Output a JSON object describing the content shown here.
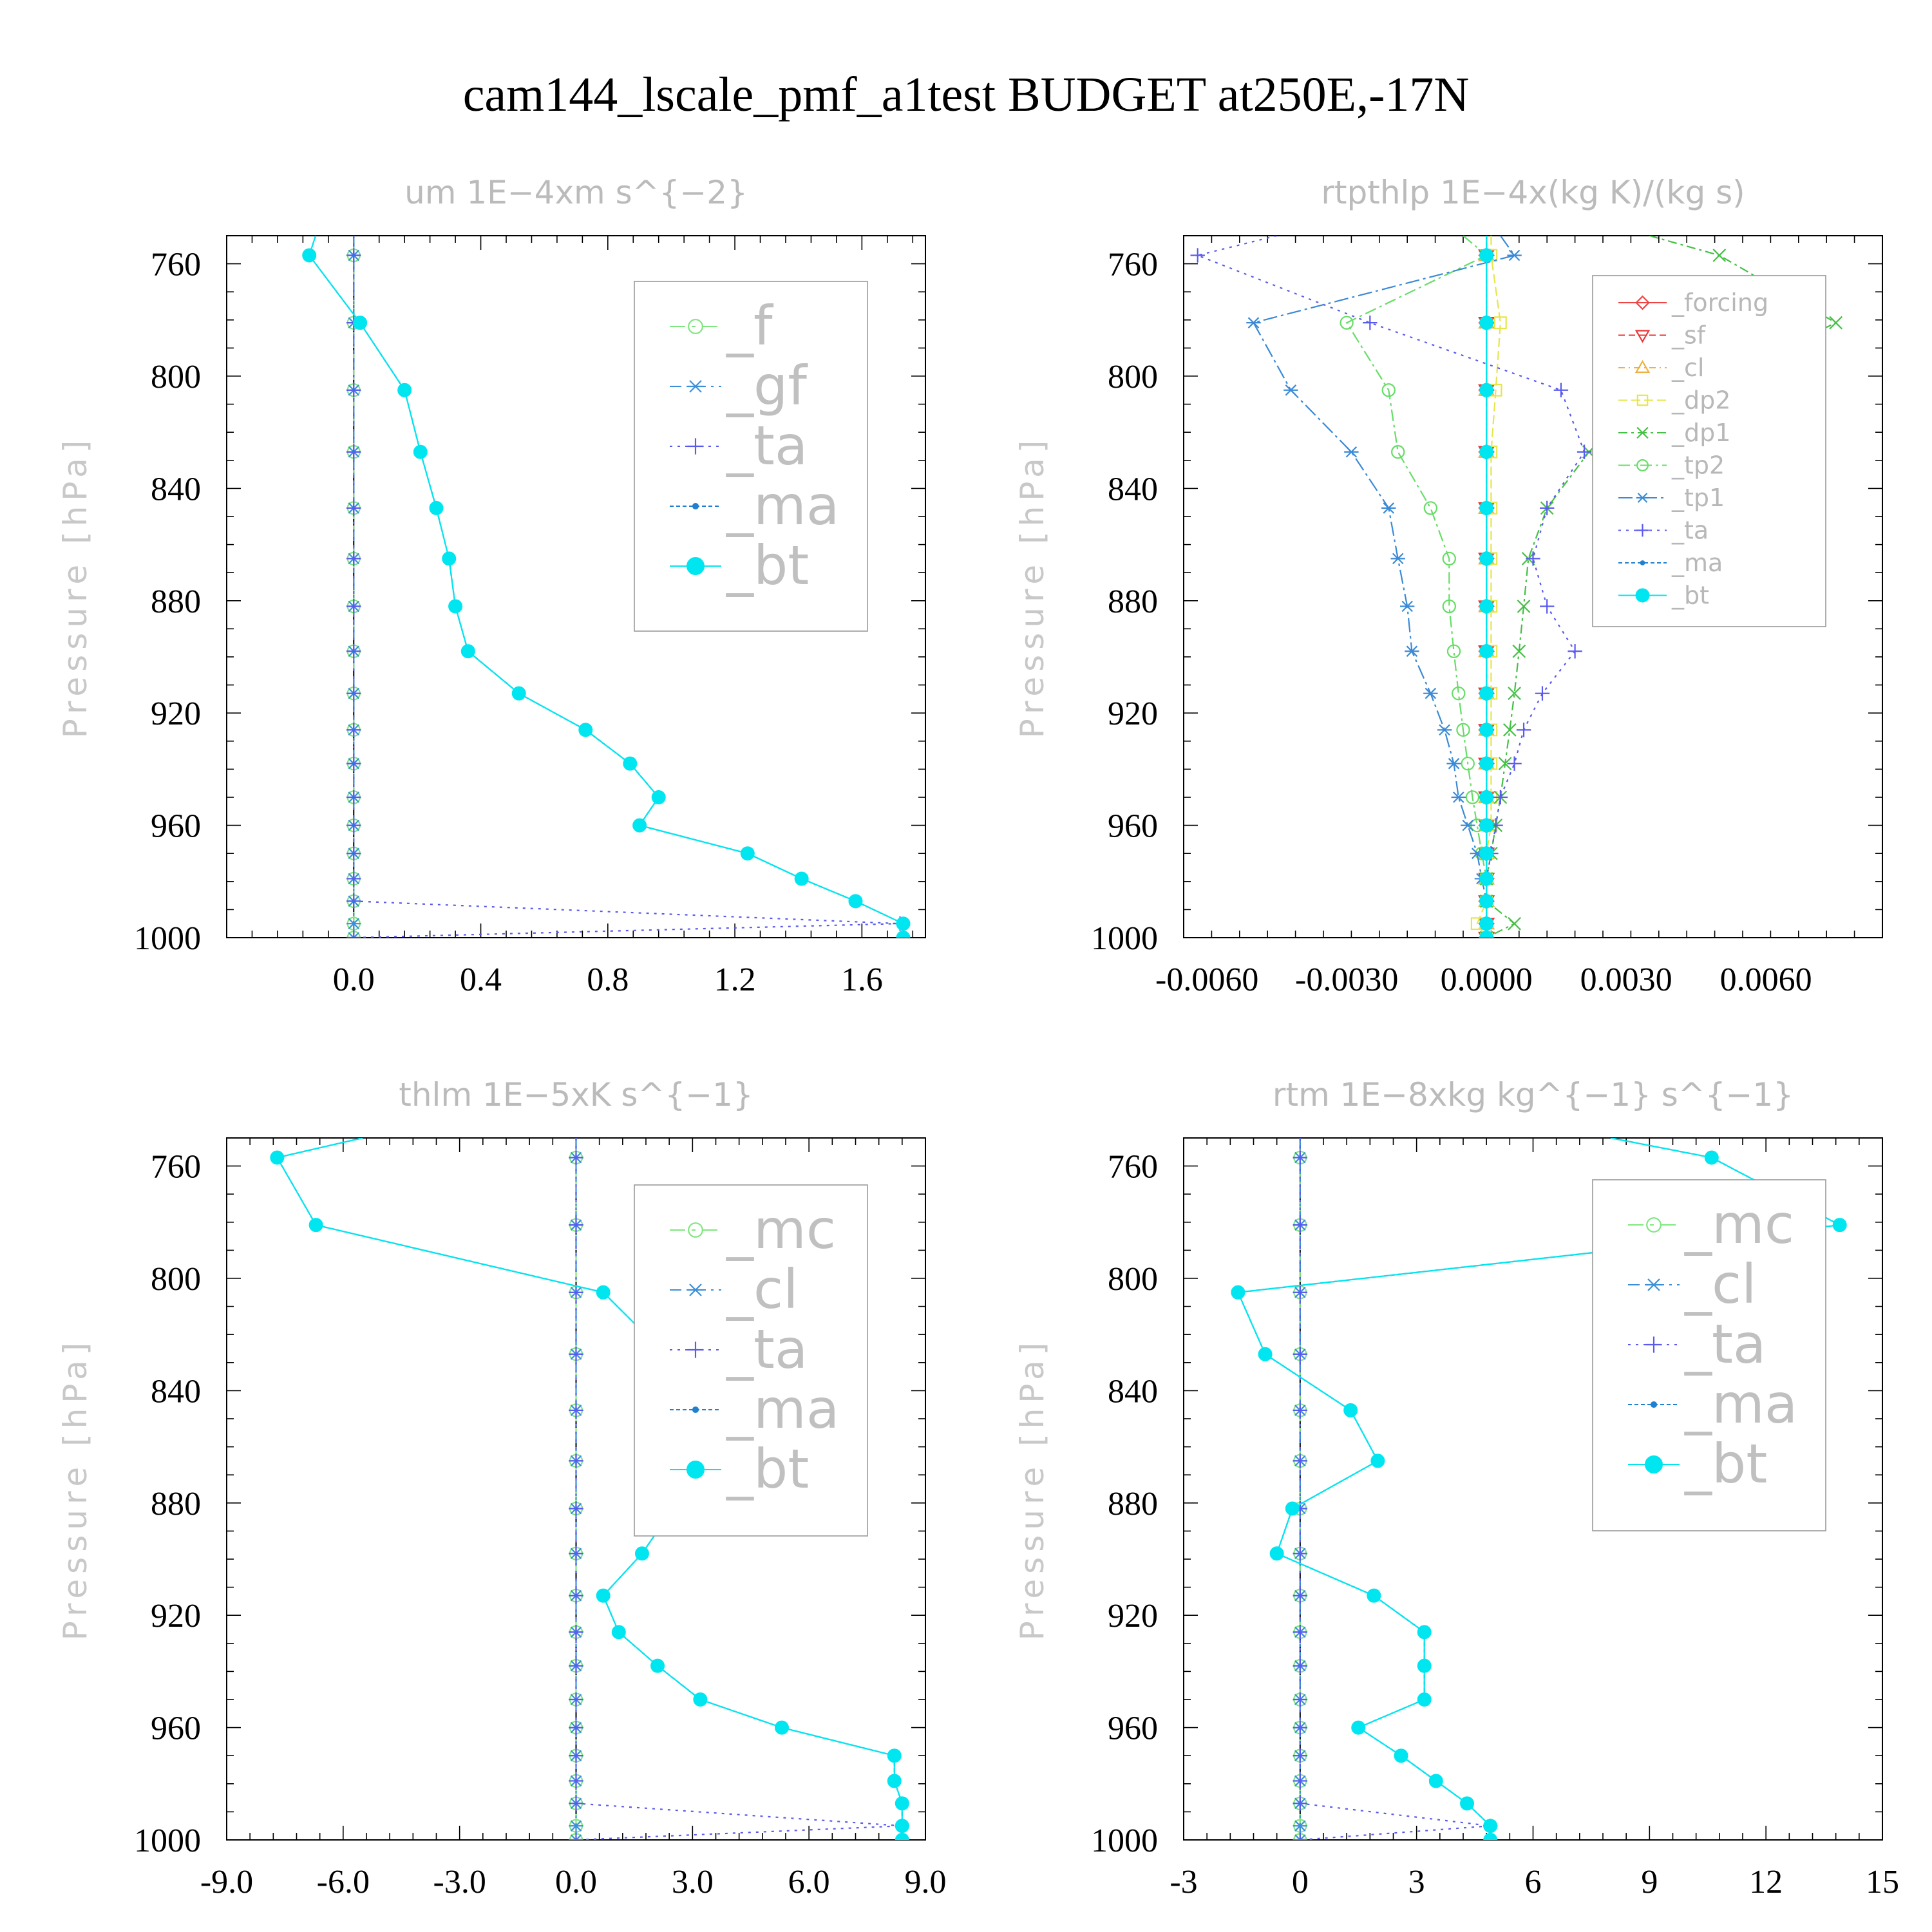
{
  "title": "cam144_lscale_pmf_a1test  BUDGET at250E,-17N",
  "chart_data": [
    {
      "type": "line",
      "title": "um   1E−4xm s^{−2}",
      "ylabel": "Pressure [hPa]",
      "xlim": [
        -0.4,
        1.8
      ],
      "ylim": [
        1000,
        750
      ],
      "xticks": [
        0.0,
        0.4,
        0.8,
        1.2,
        1.6
      ],
      "xtick_labels": [
        "0.0",
        "0.4",
        "0.8",
        "1.2",
        "1.6"
      ],
      "yticks": [
        760,
        800,
        840,
        880,
        920,
        960,
        1000
      ],
      "ytick_labels": [
        "760",
        "800",
        "840",
        "880",
        "920",
        "960",
        "1000"
      ],
      "zero_line": true,
      "legend_style": "big",
      "pressure": [
        750,
        757,
        781,
        805,
        827,
        847,
        865,
        882,
        898,
        913,
        926,
        938,
        950,
        960,
        970,
        979,
        987,
        995,
        1000
      ],
      "series": [
        {
          "name": "_f",
          "color": "#7fe67f",
          "marker": "circle",
          "dash": "24 10 6 10",
          "values": [
            0,
            0,
            0,
            0,
            0,
            0,
            0,
            0,
            0,
            0,
            0,
            0,
            0,
            0,
            0,
            0,
            0,
            0,
            0
          ]
        },
        {
          "name": "_gf",
          "color": "#3a8fd8",
          "marker": "star",
          "dash": "18 8 4 8",
          "values": [
            0,
            0,
            0,
            0,
            0,
            0,
            0,
            0,
            0,
            0,
            0,
            0,
            0,
            0,
            0,
            0,
            0,
            0,
            0
          ]
        },
        {
          "name": "_ta",
          "color": "#5a5aee",
          "marker": "plus",
          "dash": "4 8",
          "values": [
            0,
            0,
            0,
            0,
            0,
            0,
            0,
            0,
            0,
            0,
            0,
            0,
            0,
            0,
            0,
            0,
            0,
            1.72,
            0
          ]
        },
        {
          "name": "_ma",
          "color": "#1f7fd0",
          "marker": "dot",
          "dash": "6 4",
          "values": [
            -0.12,
            -0.14,
            0.02,
            0.16,
            0.21,
            0.26,
            0.3,
            0.32,
            0.36,
            0.52,
            0.73,
            0.87,
            0.96,
            0.9,
            1.24,
            1.41,
            1.58,
            1.73,
            1.73
          ]
        },
        {
          "name": "_bt",
          "color": "#00e6f0",
          "marker": "filled",
          "dash": "",
          "values": [
            -0.12,
            -0.14,
            0.02,
            0.16,
            0.21,
            0.26,
            0.3,
            0.32,
            0.36,
            0.52,
            0.73,
            0.87,
            0.96,
            0.9,
            1.24,
            1.41,
            1.58,
            1.73,
            1.73
          ]
        }
      ]
    },
    {
      "type": "line",
      "title": "rtpthlp   1E−4x(kg K)/(kg s)",
      "ylabel": "Pressure [hPa]",
      "xlim": [
        -0.0065,
        0.0085
      ],
      "ylim": [
        1000,
        750
      ],
      "xticks": [
        -0.006,
        -0.003,
        0.0,
        0.003,
        0.006
      ],
      "xtick_labels": [
        "-0.0060",
        "-0.0030",
        "0.0000",
        "0.0030",
        "0.0060"
      ],
      "yticks": [
        760,
        800,
        840,
        880,
        920,
        960,
        1000
      ],
      "ytick_labels": [
        "760",
        "800",
        "840",
        "880",
        "920",
        "960",
        "1000"
      ],
      "zero_line": true,
      "legend_style": "small",
      "pressure": [
        750,
        757,
        781,
        805,
        827,
        847,
        865,
        882,
        898,
        913,
        926,
        938,
        950,
        960,
        970,
        979,
        987,
        995,
        1000
      ],
      "series": [
        {
          "name": "_forcing",
          "color": "#ee4444",
          "marker": "diamond",
          "dash": "",
          "values": [
            0,
            0,
            0,
            0,
            0,
            0,
            0,
            0,
            0,
            0,
            0,
            0,
            0,
            0,
            0,
            0,
            0,
            0,
            0
          ]
        },
        {
          "name": "_sf",
          "color": "#ee3333",
          "marker": "tri-down",
          "dash": "10 6",
          "values": [
            0,
            0,
            0,
            0,
            0,
            0,
            0,
            0,
            0,
            0,
            0,
            0,
            0,
            0,
            0,
            0,
            0,
            0,
            0
          ]
        },
        {
          "name": "_cl",
          "color": "#f0b040",
          "marker": "tri-up",
          "dash": "10 6 2 6",
          "values": [
            0,
            0,
            0,
            0,
            0,
            0,
            0,
            0,
            0,
            0,
            0,
            0,
            0,
            0,
            0,
            0,
            0,
            0,
            0
          ]
        },
        {
          "name": "_dp2",
          "color": "#e6e64a",
          "marker": "square",
          "dash": "14 6",
          "values": [
            0.0001,
            0.0001,
            0.0003,
            0.0002,
            0.0001,
            0.0001,
            0.0001,
            0.0001,
            0.0001,
            0.0001,
            0.0001,
            0.0001,
            0.0001,
            0.0001,
            0.0,
            0.0,
            0.0,
            -0.0002,
            0.0
          ]
        },
        {
          "name": "_dp1",
          "color": "#44c044",
          "marker": "x",
          "dash": "14 6 4 6",
          "values": [
            0.0035,
            0.005,
            0.0075,
            0.0045,
            0.0022,
            0.0013,
            0.0009,
            0.0008,
            0.0007,
            0.0006,
            0.0005,
            0.0004,
            0.0003,
            0.0002,
            0.0001,
            0.0,
            0.0,
            0.0006,
            0.0
          ]
        },
        {
          "name": "_tp2",
          "color": "#66dd66",
          "marker": "circle",
          "dash": "18 6 4 6",
          "values": [
            -0.0005,
            0.0,
            -0.003,
            -0.0021,
            -0.0019,
            -0.0012,
            -0.0008,
            -0.0008,
            -0.0007,
            -0.0006,
            -0.0005,
            -0.0004,
            -0.0003,
            -0.0002,
            -0.0001,
            0.0,
            0.0,
            0.0,
            0.0
          ]
        },
        {
          "name": "_tp1",
          "color": "#3a8ad6",
          "marker": "star",
          "dash": "22 6 4 6",
          "values": [
            0.0003,
            0.0006,
            -0.005,
            -0.0042,
            -0.0029,
            -0.0021,
            -0.0019,
            -0.0017,
            -0.0016,
            -0.0012,
            -0.0009,
            -0.0007,
            -0.0006,
            -0.0004,
            -0.0002,
            -0.0001,
            0.0,
            0.0,
            0.0
          ]
        },
        {
          "name": "_ta",
          "color": "#5a5aee",
          "marker": "plus",
          "dash": "4 8",
          "values": [
            -0.0045,
            -0.0062,
            -0.0025,
            0.0016,
            0.0021,
            0.0013,
            0.001,
            0.0013,
            0.0019,
            0.0012,
            0.0008,
            0.0006,
            0.0003,
            0.0002,
            0.0001,
            0.0,
            0.0,
            0.0,
            0.0
          ]
        },
        {
          "name": "_ma",
          "color": "#1f7fd0",
          "marker": "dot",
          "dash": "6 4",
          "values": [
            0,
            0,
            0,
            0,
            0,
            0,
            0,
            0,
            0,
            0,
            0,
            0,
            0,
            0,
            0,
            0,
            0,
            0,
            0
          ]
        },
        {
          "name": "_bt",
          "color": "#00e6f0",
          "marker": "filled",
          "dash": "",
          "values": [
            0,
            0,
            0,
            0,
            0,
            0,
            0,
            0,
            0,
            0,
            0,
            0,
            0,
            0,
            0,
            0,
            0,
            0,
            0
          ]
        }
      ]
    },
    {
      "type": "line",
      "title": "thlm   1E−5xK s^{−1}",
      "ylabel": "Pressure [hPa]",
      "xlim": [
        -9.0,
        9.0
      ],
      "ylim": [
        1000,
        750
      ],
      "xticks": [
        -9.0,
        -6.0,
        -3.0,
        0.0,
        3.0,
        6.0,
        9.0
      ],
      "xtick_labels": [
        "-9.0",
        "-6.0",
        "-3.0",
        "0.0",
        "3.0",
        "6.0",
        "9.0"
      ],
      "yticks": [
        760,
        800,
        840,
        880,
        920,
        960,
        1000
      ],
      "ytick_labels": [
        "760",
        "800",
        "840",
        "880",
        "920",
        "960",
        "1000"
      ],
      "zero_line": true,
      "legend_style": "big",
      "pressure": [
        750,
        757,
        781,
        805,
        827,
        847,
        865,
        882,
        898,
        913,
        926,
        938,
        950,
        960,
        970,
        979,
        987,
        995,
        1000
      ],
      "series": [
        {
          "name": "_mc",
          "color": "#7fe67f",
          "marker": "circle",
          "dash": "24 10 6 10",
          "values": [
            0,
            0,
            0,
            0,
            0,
            0,
            0,
            0,
            0,
            0,
            0,
            0,
            0,
            0,
            0,
            0,
            0,
            0,
            0
          ]
        },
        {
          "name": "_cl",
          "color": "#3a8fd8",
          "marker": "star",
          "dash": "18 8 4 8",
          "values": [
            0,
            0,
            0,
            0,
            0,
            0,
            0,
            0,
            0,
            0,
            0,
            0,
            0,
            0,
            0,
            0,
            0,
            0,
            0
          ]
        },
        {
          "name": "_ta",
          "color": "#5a5aee",
          "marker": "plus",
          "dash": "4 8",
          "values": [
            0,
            0,
            0,
            0,
            0,
            0,
            0,
            0,
            0,
            0,
            0,
            0,
            0,
            0,
            0,
            0,
            0,
            8.4,
            0
          ]
        },
        {
          "name": "_ma",
          "color": "#1f7fd0",
          "marker": "dot",
          "dash": "6 4",
          "values": [
            -5.5,
            -7.7,
            -6.7,
            0.7,
            2.3,
            2.4,
            2.1,
            2.5,
            1.7,
            0.7,
            1.1,
            2.1,
            3.2,
            5.3,
            8.2,
            8.2,
            8.4,
            8.4,
            8.4
          ]
        },
        {
          "name": "_bt",
          "color": "#00e6f0",
          "marker": "filled",
          "dash": "",
          "values": [
            -5.5,
            -7.7,
            -6.7,
            0.7,
            2.3,
            2.4,
            2.1,
            2.5,
            1.7,
            0.7,
            1.1,
            2.1,
            3.2,
            5.3,
            8.2,
            8.2,
            8.4,
            8.4,
            8.4
          ]
        }
      ]
    },
    {
      "type": "line",
      "title": "rtm   1E−8xkg kg^{−1} s^{−1}",
      "ylabel": "Pressure [hPa]",
      "xlim": [
        -3,
        15
      ],
      "ylim": [
        1000,
        750
      ],
      "xticks": [
        -3,
        0,
        3,
        6,
        9,
        12,
        15
      ],
      "xtick_labels": [
        "-3",
        "0",
        "3",
        "6",
        "9",
        "12",
        "15"
      ],
      "yticks": [
        760,
        800,
        840,
        880,
        920,
        960,
        1000
      ],
      "ytick_labels": [
        "760",
        "800",
        "840",
        "880",
        "920",
        "960",
        "1000"
      ],
      "zero_line": true,
      "legend_style": "big",
      "pressure": [
        750,
        757,
        781,
        805,
        827,
        847,
        865,
        882,
        898,
        913,
        926,
        938,
        950,
        960,
        970,
        979,
        987,
        995,
        1000
      ],
      "series": [
        {
          "name": "_mc",
          "color": "#7fe67f",
          "marker": "circle",
          "dash": "24 10 6 10",
          "values": [
            0,
            0,
            0,
            0,
            0,
            0,
            0,
            0,
            0,
            0,
            0,
            0,
            0,
            0,
            0,
            0,
            0,
            0,
            0
          ]
        },
        {
          "name": "_cl",
          "color": "#3a8fd8",
          "marker": "star",
          "dash": "18 8 4 8",
          "values": [
            0,
            0,
            0,
            0,
            0,
            0,
            0,
            0,
            0,
            0,
            0,
            0,
            0,
            0,
            0,
            0,
            0,
            0,
            0
          ]
        },
        {
          "name": "_ta",
          "color": "#5a5aee",
          "marker": "plus",
          "dash": "4 8",
          "values": [
            0,
            0,
            0,
            0,
            0,
            0,
            0,
            0,
            0,
            0,
            0,
            0,
            0,
            0,
            0,
            0,
            0,
            4.9,
            0
          ]
        },
        {
          "name": "_ma",
          "color": "#1f7fd0",
          "marker": "dot",
          "dash": "6 4",
          "values": [
            8.0,
            10.6,
            13.9,
            -1.6,
            -0.9,
            1.3,
            2.0,
            -0.2,
            -0.6,
            1.9,
            3.2,
            3.2,
            3.2,
            1.5,
            2.6,
            3.5,
            4.3,
            4.9,
            4.9
          ]
        },
        {
          "name": "_bt",
          "color": "#00e6f0",
          "marker": "filled",
          "dash": "",
          "values": [
            8.0,
            10.6,
            13.9,
            -1.6,
            -0.9,
            1.3,
            2.0,
            -0.2,
            -0.6,
            1.9,
            3.2,
            3.2,
            3.2,
            1.5,
            2.6,
            3.5,
            4.3,
            4.9,
            4.9
          ]
        }
      ]
    }
  ]
}
